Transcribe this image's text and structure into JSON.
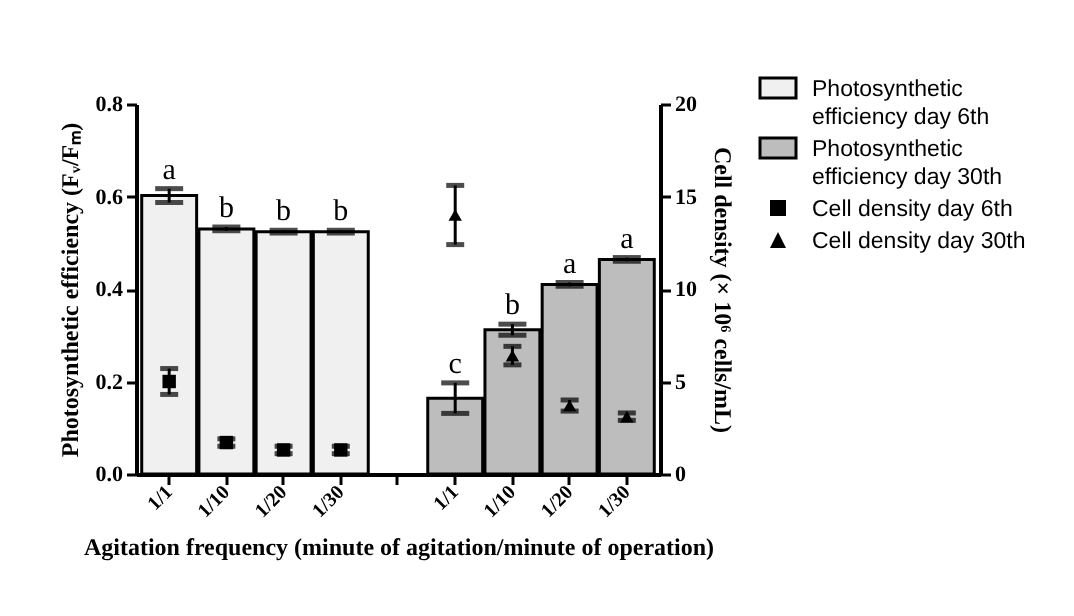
{
  "chart_data": {
    "type": "bar",
    "xlabel": "Agitation frequency (minute of agitation/minute of operation)",
    "ylabel": "Photosynthetic efficiency (Fᵥ/Fₘ)",
    "y2label": "Cell density (× 10⁶ cells/mL)",
    "categories": [
      "1/1",
      "1/10",
      "1/20",
      "1/30",
      null,
      "1/1",
      "1/10",
      "1/20",
      "1/30"
    ],
    "ylim": [
      0,
      0.8
    ],
    "yticks": [
      {
        "value": 0,
        "label": "0.0"
      },
      0.2,
      0.4,
      0.6,
      0.8
    ],
    "y2lim": [
      0,
      20
    ],
    "y2ticks": [
      0,
      5,
      10,
      15,
      20
    ],
    "legend": "right",
    "series": [
      {
        "name": "Photosynthetic efficiency day 6th",
        "color": "#f0f0f0",
        "values": [
          0.602,
          0.53,
          0.524,
          0.524,
          null,
          null,
          null,
          null,
          null
        ],
        "errors": [
          0.015,
          0.004,
          0.003,
          0.003,
          null,
          null,
          null,
          null,
          null
        ],
        "value_labels": [
          "a",
          "b",
          "b",
          "b",
          null,
          null,
          null,
          null,
          null
        ]
      },
      {
        "name": "Photosynthetic efficiency day 30th",
        "color": "#bdbdbd",
        "values": [
          null,
          null,
          null,
          null,
          null,
          0.164,
          0.312,
          0.41,
          0.464
        ],
        "errors": [
          null,
          null,
          null,
          null,
          null,
          0.033,
          0.012,
          0.004,
          0.004
        ],
        "value_labels": [
          null,
          null,
          null,
          null,
          null,
          "c",
          "b",
          "a",
          "a"
        ]
      },
      {
        "name": "Cell density day 6th",
        "type": "scatter",
        "axis": "y2",
        "marker": "square",
        "color": "#000000",
        "values": [
          5.0,
          1.7,
          1.3,
          1.3,
          null,
          null,
          null,
          null,
          null
        ],
        "errors": [
          0.7,
          0.2,
          0.2,
          0.2,
          null,
          null,
          null,
          null,
          null
        ]
      },
      {
        "name": "Cell density day 30th",
        "type": "scatter",
        "axis": "y2",
        "marker": "triangle",
        "color": "#000000",
        "values": [
          null,
          null,
          null,
          null,
          null,
          14.0,
          6.4,
          3.7,
          3.1
        ],
        "errors": [
          null,
          null,
          null,
          null,
          null,
          1.6,
          0.5,
          0.3,
          0.2
        ]
      }
    ]
  }
}
